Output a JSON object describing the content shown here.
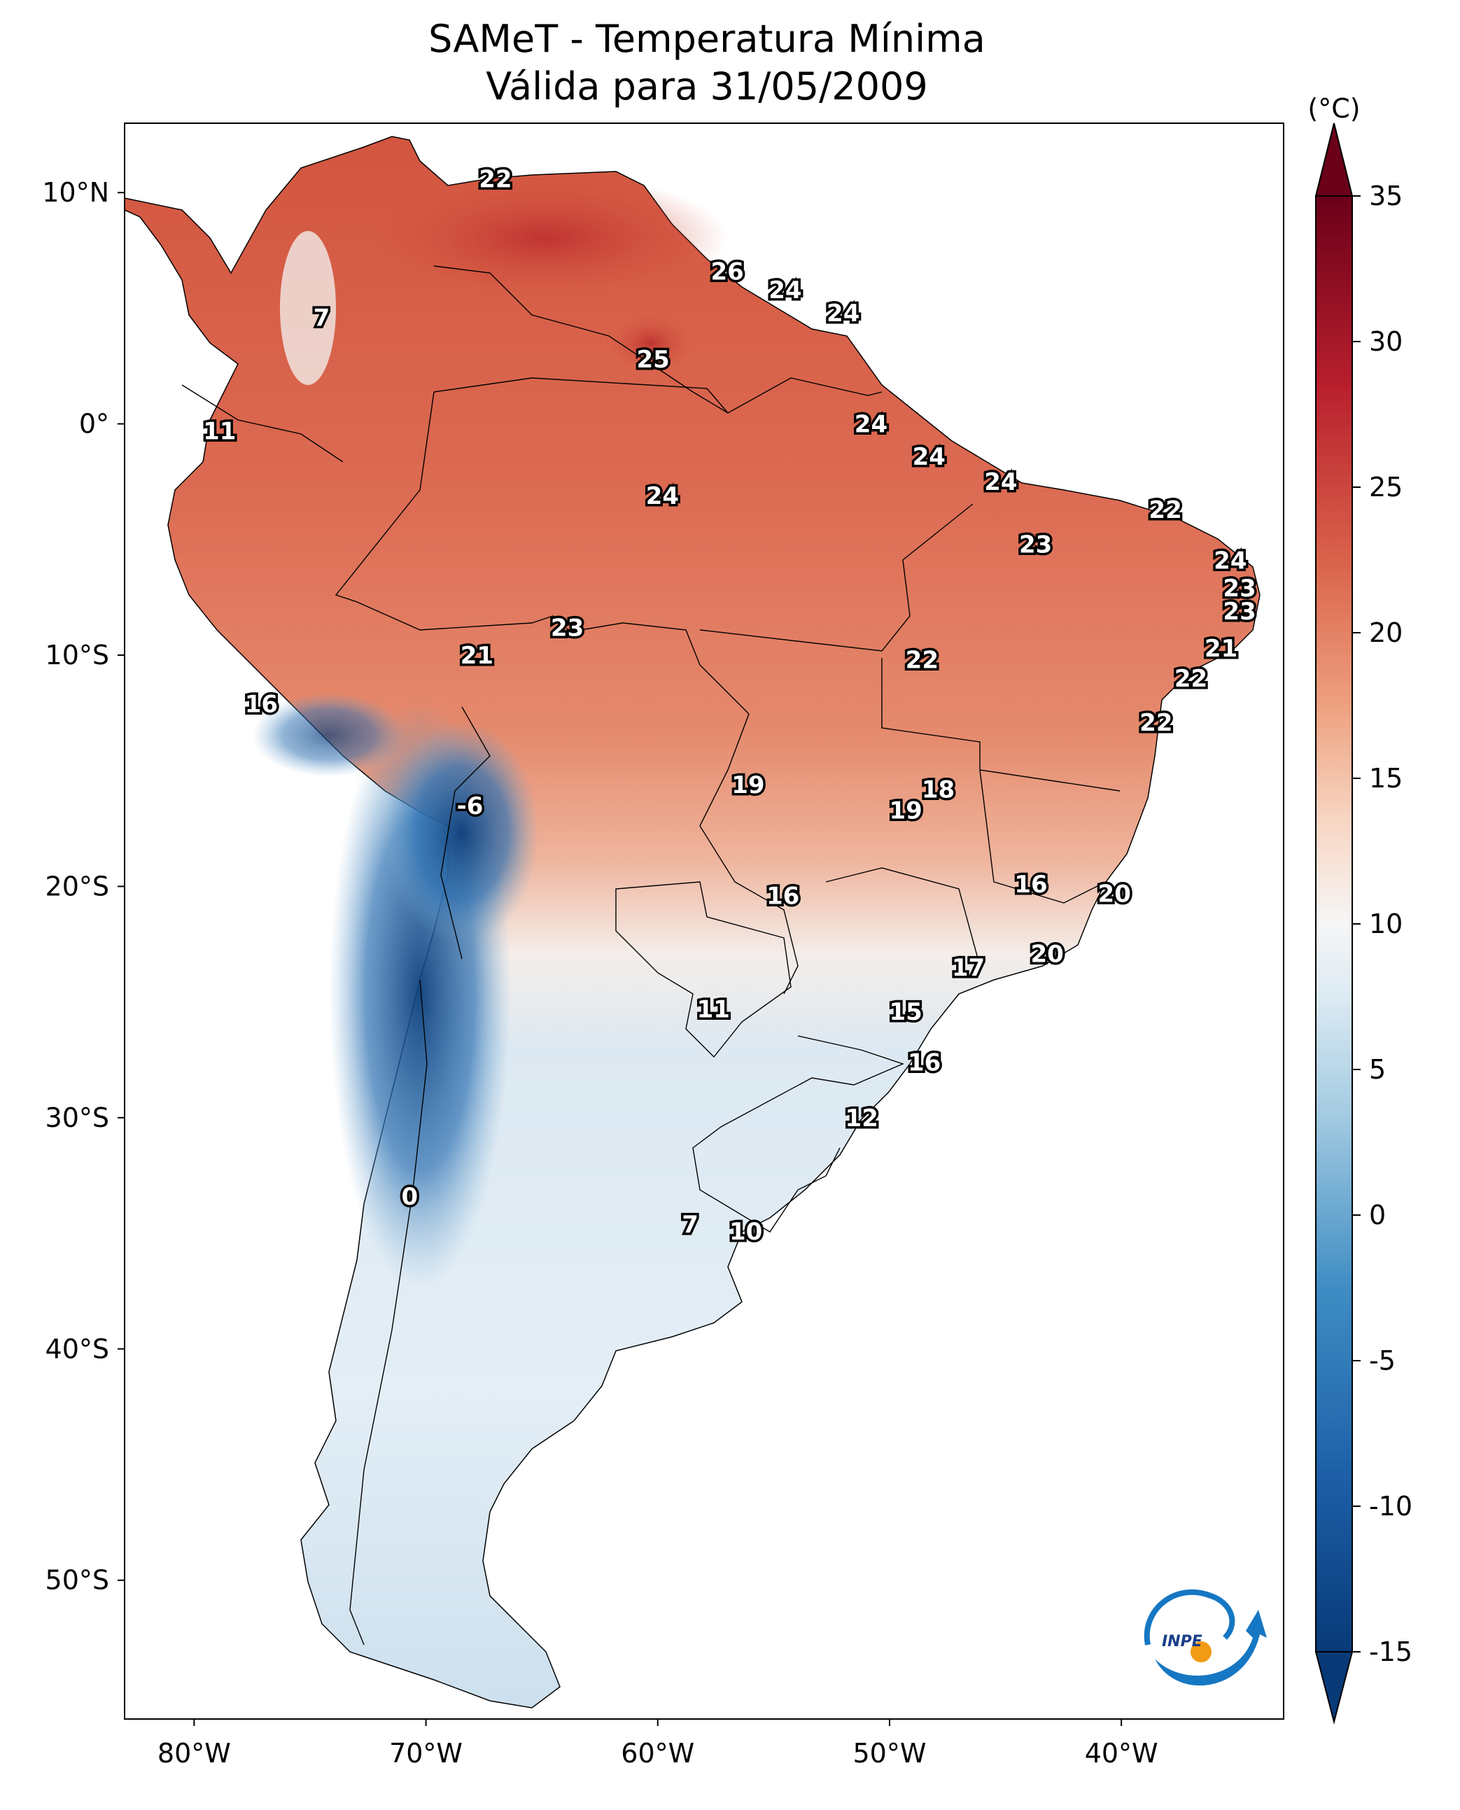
{
  "title": "SAMeT - Temperatura Mínima",
  "subtitle": "Válida para 31/05/2009",
  "colorbar": {
    "unit": "(°C)",
    "ticks": [
      "35",
      "30",
      "25",
      "20",
      "15",
      "10",
      "5",
      "0",
      "-5",
      "-10",
      "-15"
    ],
    "range": [
      -15,
      35
    ],
    "colormap": "RdBu_r",
    "extends": "both"
  },
  "axes": {
    "lat_labels": [
      "10°N",
      "0°",
      "10°S",
      "20°S",
      "30°S",
      "40°S",
      "50°S"
    ],
    "lon_labels": [
      "80°W",
      "70°W",
      "60°W",
      "50°W",
      "40°W"
    ],
    "lon_range": [
      -83,
      -33
    ],
    "lat_range": [
      -56,
      13
    ]
  },
  "logo": {
    "text": "INPE"
  },
  "chart_data": {
    "type": "heatmap",
    "title": "SAMeT - Temperatura Mínima",
    "subtitle": "Válida para 31/05/2009",
    "unit": "°C",
    "point_labels": [
      {
        "lon": -67,
        "lat": 10.6,
        "value": 22
      },
      {
        "lon": -74.5,
        "lat": 4.6,
        "value": 7
      },
      {
        "lon": -57,
        "lat": 6.6,
        "value": 26
      },
      {
        "lon": -54.5,
        "lat": 5.8,
        "value": 24
      },
      {
        "lon": -52,
        "lat": 4.8,
        "value": 24
      },
      {
        "lon": -60.2,
        "lat": 2.8,
        "value": 25
      },
      {
        "lon": -78.9,
        "lat": -0.3,
        "value": 11
      },
      {
        "lon": -50.8,
        "lat": 0,
        "value": 24
      },
      {
        "lon": -48.3,
        "lat": -1.4,
        "value": 24
      },
      {
        "lon": -59.8,
        "lat": -3.1,
        "value": 24
      },
      {
        "lon": -45.2,
        "lat": -2.5,
        "value": 24
      },
      {
        "lon": -38.1,
        "lat": -3.7,
        "value": 22
      },
      {
        "lon": -43.7,
        "lat": -5.2,
        "value": 23
      },
      {
        "lon": -35.3,
        "lat": -5.9,
        "value": 24
      },
      {
        "lon": -34.9,
        "lat": -7.1,
        "value": 23
      },
      {
        "lon": -34.9,
        "lat": -8.1,
        "value": 23
      },
      {
        "lon": -63.9,
        "lat": -8.8,
        "value": 23
      },
      {
        "lon": -67.8,
        "lat": -10.0,
        "value": 21
      },
      {
        "lon": -48.6,
        "lat": -10.2,
        "value": 22
      },
      {
        "lon": -35.7,
        "lat": -9.7,
        "value": 21
      },
      {
        "lon": -37.0,
        "lat": -11.0,
        "value": 22
      },
      {
        "lon": -77.1,
        "lat": -12.1,
        "value": 16
      },
      {
        "lon": -38.5,
        "lat": -12.9,
        "value": 22
      },
      {
        "lon": -68.1,
        "lat": -16.5,
        "value": -6
      },
      {
        "lon": -56.1,
        "lat": -15.6,
        "value": 19
      },
      {
        "lon": -47.9,
        "lat": -15.8,
        "value": 18
      },
      {
        "lon": -49.3,
        "lat": -16.7,
        "value": 19
      },
      {
        "lon": -54.6,
        "lat": -20.4,
        "value": 16
      },
      {
        "lon": -43.9,
        "lat": -19.9,
        "value": 16
      },
      {
        "lon": -40.3,
        "lat": -20.3,
        "value": 20
      },
      {
        "lon": -43.2,
        "lat": -22.9,
        "value": 20
      },
      {
        "lon": -46.6,
        "lat": -23.5,
        "value": 17
      },
      {
        "lon": -57.6,
        "lat": -25.3,
        "value": 11
      },
      {
        "lon": -49.3,
        "lat": -25.4,
        "value": 15
      },
      {
        "lon": -48.5,
        "lat": -27.6,
        "value": 16
      },
      {
        "lon": -51.2,
        "lat": -30.0,
        "value": 12
      },
      {
        "lon": -70.7,
        "lat": -33.4,
        "value": 0
      },
      {
        "lon": -58.6,
        "lat": -34.6,
        "value": 7
      },
      {
        "lon": -56.2,
        "lat": -34.9,
        "value": 10
      }
    ]
  }
}
